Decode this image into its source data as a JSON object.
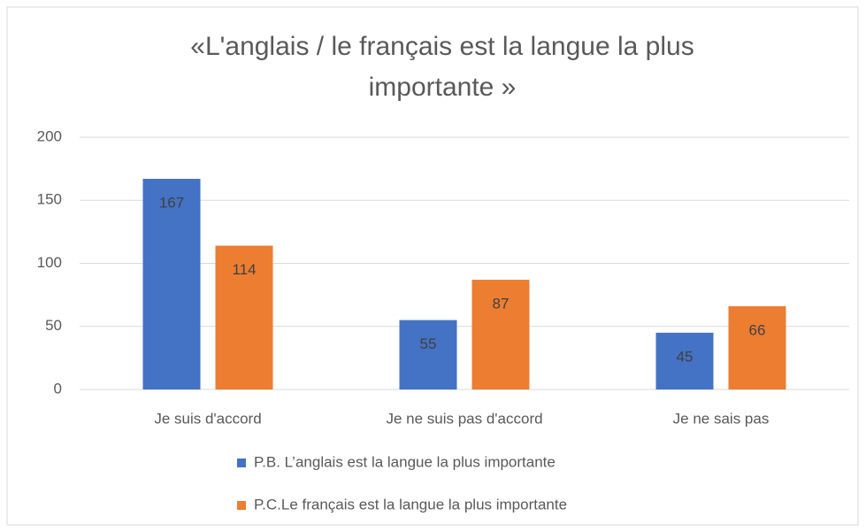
{
  "chart_data": {
    "type": "bar",
    "title": "«L'anglais / le français est la langue la plus importante »",
    "categories": [
      "Je suis d'accord",
      "Je ne suis pas d'accord",
      "Je ne sais pas"
    ],
    "series": [
      {
        "name": "P.B. L’anglais est la langue la plus importante",
        "color": "#4472c4",
        "values": [
          167,
          55,
          45
        ]
      },
      {
        "name": "P.C.Le français est la langue la plus importante",
        "color": "#ed7d31",
        "values": [
          114,
          87,
          66
        ]
      }
    ],
    "ylim": [
      0,
      200
    ],
    "yticks": [
      0,
      50,
      100,
      150,
      200
    ],
    "grid": true,
    "legend": "bottom"
  }
}
